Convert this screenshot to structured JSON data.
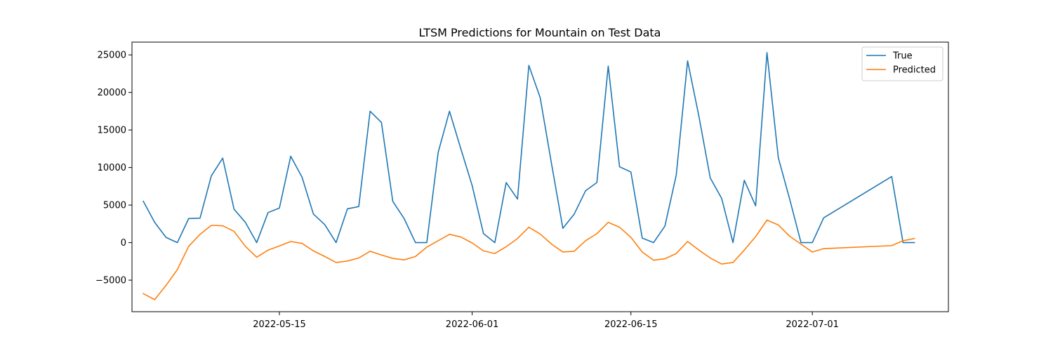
{
  "chart_data": {
    "type": "line",
    "title": "LTSM Predictions for Mountain on Test Data",
    "xlabel": "",
    "ylabel": "",
    "x_tick_labels": [
      "2022-05-15",
      "2022-06-01",
      "2022-06-15",
      "2022-07-01"
    ],
    "x_tick_dates": [
      "2022-05-15",
      "2022-06-01",
      "2022-06-15",
      "2022-07-01"
    ],
    "y_ticks": [
      -5000,
      0,
      5000,
      10000,
      15000,
      20000,
      25000
    ],
    "y_tick_labels": [
      "−5000",
      "0",
      "5000",
      "10000",
      "15000",
      "20000",
      "25000"
    ],
    "ylim": [
      -9200,
      26700
    ],
    "xlim": [
      "2022-05-02",
      "2022-07-13"
    ],
    "grid": false,
    "legend_position": "top-right",
    "series": [
      {
        "name": "True",
        "color": "#1f77b4",
        "points": [
          [
            "2022-05-03",
            5500
          ],
          [
            "2022-05-04",
            2700
          ],
          [
            "2022-05-05",
            700
          ],
          [
            "2022-05-06",
            0
          ],
          [
            "2022-05-07",
            3200
          ],
          [
            "2022-05-08",
            3250
          ],
          [
            "2022-05-09",
            8900
          ],
          [
            "2022-05-10",
            11250
          ],
          [
            "2022-05-11",
            4450
          ],
          [
            "2022-05-12",
            2700
          ],
          [
            "2022-05-13",
            0
          ],
          [
            "2022-05-14",
            4000
          ],
          [
            "2022-05-15",
            4600
          ],
          [
            "2022-05-16",
            11500
          ],
          [
            "2022-05-17",
            8700
          ],
          [
            "2022-05-18",
            3800
          ],
          [
            "2022-05-19",
            2400
          ],
          [
            "2022-05-20",
            0
          ],
          [
            "2022-05-21",
            4500
          ],
          [
            "2022-05-22",
            4800
          ],
          [
            "2022-05-23",
            17500
          ],
          [
            "2022-05-24",
            16000
          ],
          [
            "2022-05-25",
            5500
          ],
          [
            "2022-05-26",
            3200
          ],
          [
            "2022-05-27",
            0
          ],
          [
            "2022-05-28",
            0
          ],
          [
            "2022-05-29",
            12000
          ],
          [
            "2022-05-30",
            17500
          ],
          [
            "2022-05-31",
            12500
          ],
          [
            "2022-06-01",
            7600
          ],
          [
            "2022-06-02",
            1200
          ],
          [
            "2022-06-03",
            0
          ],
          [
            "2022-06-04",
            8000
          ],
          [
            "2022-06-05",
            5800
          ],
          [
            "2022-06-06",
            23600
          ],
          [
            "2022-06-07",
            19300
          ],
          [
            "2022-06-08",
            10500
          ],
          [
            "2022-06-09",
            1900
          ],
          [
            "2022-06-10",
            3800
          ],
          [
            "2022-06-11",
            6900
          ],
          [
            "2022-06-12",
            8000
          ],
          [
            "2022-06-13",
            23500
          ],
          [
            "2022-06-14",
            10100
          ],
          [
            "2022-06-15",
            9400
          ],
          [
            "2022-06-16",
            600
          ],
          [
            "2022-06-17",
            0
          ],
          [
            "2022-06-18",
            2200
          ],
          [
            "2022-06-19",
            9000
          ],
          [
            "2022-06-20",
            24200
          ],
          [
            "2022-06-21",
            16800
          ],
          [
            "2022-06-22",
            8600
          ],
          [
            "2022-06-23",
            5900
          ],
          [
            "2022-06-24",
            0
          ],
          [
            "2022-06-25",
            8300
          ],
          [
            "2022-06-26",
            4900
          ],
          [
            "2022-06-27",
            25300
          ],
          [
            "2022-06-28",
            11300
          ],
          [
            "2022-06-29",
            5800
          ],
          [
            "2022-06-30",
            0
          ],
          [
            "2022-07-01",
            0
          ],
          [
            "2022-07-02",
            3300
          ],
          [
            "2022-07-08",
            8800
          ],
          [
            "2022-07-09",
            0
          ],
          [
            "2022-07-10",
            0
          ]
        ]
      },
      {
        "name": "Predicted",
        "color": "#ff7f0e",
        "points": [
          [
            "2022-05-03",
            -6800
          ],
          [
            "2022-05-04",
            -7600
          ],
          [
            "2022-05-05",
            -5700
          ],
          [
            "2022-05-06",
            -3600
          ],
          [
            "2022-05-07",
            -500
          ],
          [
            "2022-05-08",
            1100
          ],
          [
            "2022-05-09",
            2300
          ],
          [
            "2022-05-10",
            2250
          ],
          [
            "2022-05-11",
            1500
          ],
          [
            "2022-05-12",
            -500
          ],
          [
            "2022-05-13",
            -1950
          ],
          [
            "2022-05-14",
            -1000
          ],
          [
            "2022-05-15",
            -450
          ],
          [
            "2022-05-16",
            150
          ],
          [
            "2022-05-17",
            -100
          ],
          [
            "2022-05-18",
            -1100
          ],
          [
            "2022-05-19",
            -1850
          ],
          [
            "2022-05-20",
            -2650
          ],
          [
            "2022-05-21",
            -2450
          ],
          [
            "2022-05-22",
            -2050
          ],
          [
            "2022-05-23",
            -1150
          ],
          [
            "2022-05-24",
            -1650
          ],
          [
            "2022-05-25",
            -2100
          ],
          [
            "2022-05-26",
            -2300
          ],
          [
            "2022-05-27",
            -1850
          ],
          [
            "2022-05-28",
            -600
          ],
          [
            "2022-05-29",
            250
          ],
          [
            "2022-05-30",
            1100
          ],
          [
            "2022-05-31",
            750
          ],
          [
            "2022-06-01",
            -50
          ],
          [
            "2022-06-02",
            -1100
          ],
          [
            "2022-06-03",
            -1450
          ],
          [
            "2022-06-04",
            -550
          ],
          [
            "2022-06-05",
            550
          ],
          [
            "2022-06-06",
            2050
          ],
          [
            "2022-06-07",
            1150
          ],
          [
            "2022-06-08",
            -200
          ],
          [
            "2022-06-09",
            -1250
          ],
          [
            "2022-06-10",
            -1150
          ],
          [
            "2022-06-11",
            250
          ],
          [
            "2022-06-12",
            1200
          ],
          [
            "2022-06-13",
            2700
          ],
          [
            "2022-06-14",
            2050
          ],
          [
            "2022-06-15",
            700
          ],
          [
            "2022-06-16",
            -1250
          ],
          [
            "2022-06-17",
            -2350
          ],
          [
            "2022-06-18",
            -2150
          ],
          [
            "2022-06-19",
            -1450
          ],
          [
            "2022-06-20",
            150
          ],
          [
            "2022-06-21",
            -1000
          ],
          [
            "2022-06-22",
            -2050
          ],
          [
            "2022-06-23",
            -2850
          ],
          [
            "2022-06-24",
            -2650
          ],
          [
            "2022-06-25",
            -1000
          ],
          [
            "2022-06-26",
            800
          ],
          [
            "2022-06-27",
            3000
          ],
          [
            "2022-06-28",
            2350
          ],
          [
            "2022-06-29",
            850
          ],
          [
            "2022-06-30",
            -200
          ],
          [
            "2022-07-01",
            -1250
          ],
          [
            "2022-07-02",
            -800
          ],
          [
            "2022-07-08",
            -400
          ],
          [
            "2022-07-09",
            250
          ],
          [
            "2022-07-10",
            550
          ]
        ]
      }
    ]
  }
}
